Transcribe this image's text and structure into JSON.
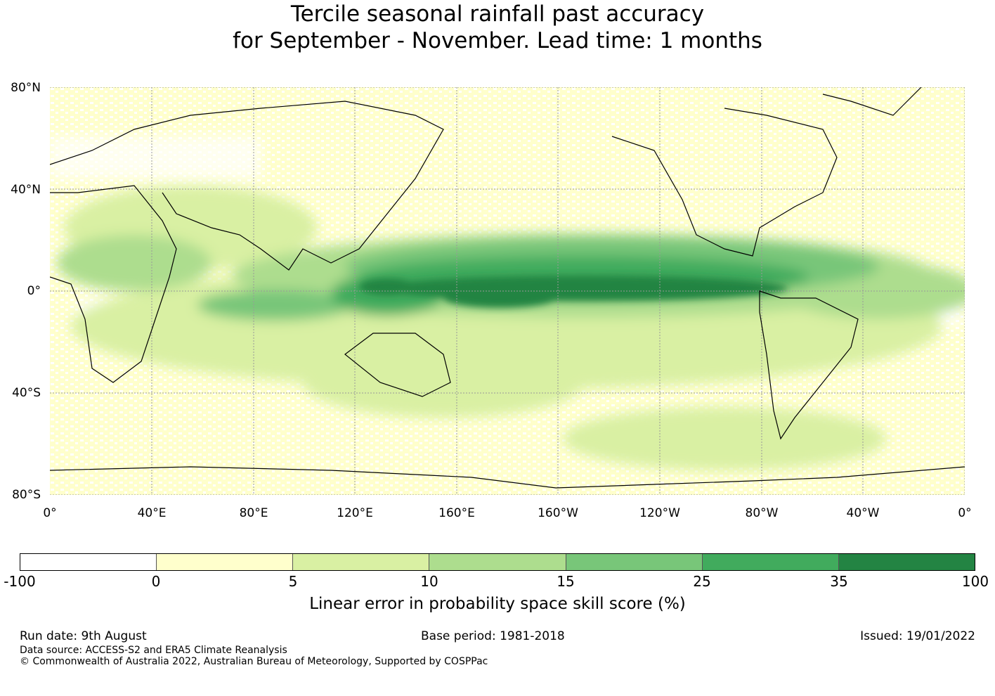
{
  "title": {
    "line1": "Tercile seasonal rainfall past accuracy",
    "line2": "for September - November. Lead time: 1 months"
  },
  "map": {
    "lat_labels": [
      "80°N",
      "40°N",
      "0°",
      "40°S",
      "80°S"
    ],
    "lon_labels": [
      "0°",
      "40°E",
      "80°E",
      "120°E",
      "160°E",
      "160°W",
      "120°W",
      "80°W",
      "40°W",
      "0°"
    ],
    "colors": {
      "below_0": "#ffffff",
      "0_5": "#ffffcc",
      "5_10": "#d9f0a3",
      "10_15": "#addd8e",
      "15_25": "#78c679",
      "25_35": "#41ab5d",
      "35_100": "#238443",
      "coastline": "#000000",
      "grid": "#999999"
    }
  },
  "colorbar": {
    "ticks": [
      "-100",
      "0",
      "5",
      "10",
      "15",
      "25",
      "35",
      "100"
    ],
    "colors": [
      "#ffffff",
      "#ffffcc",
      "#d9f0a3",
      "#addd8e",
      "#78c679",
      "#41ab5d",
      "#238443"
    ],
    "label": "Linear error in probability space skill score (%)"
  },
  "footer": {
    "run_date": "Run date: 9th August",
    "base_period": "Base period: 1981-2018",
    "issued": "Issued: 19/01/2022",
    "data_source": "Data source: ACCESS-S2 and ERA5 Climate Reanalysis",
    "copyright": "© Commonwealth of Australia 2022, Australian Bureau of Meteorology, Supported by COSPPac"
  }
}
